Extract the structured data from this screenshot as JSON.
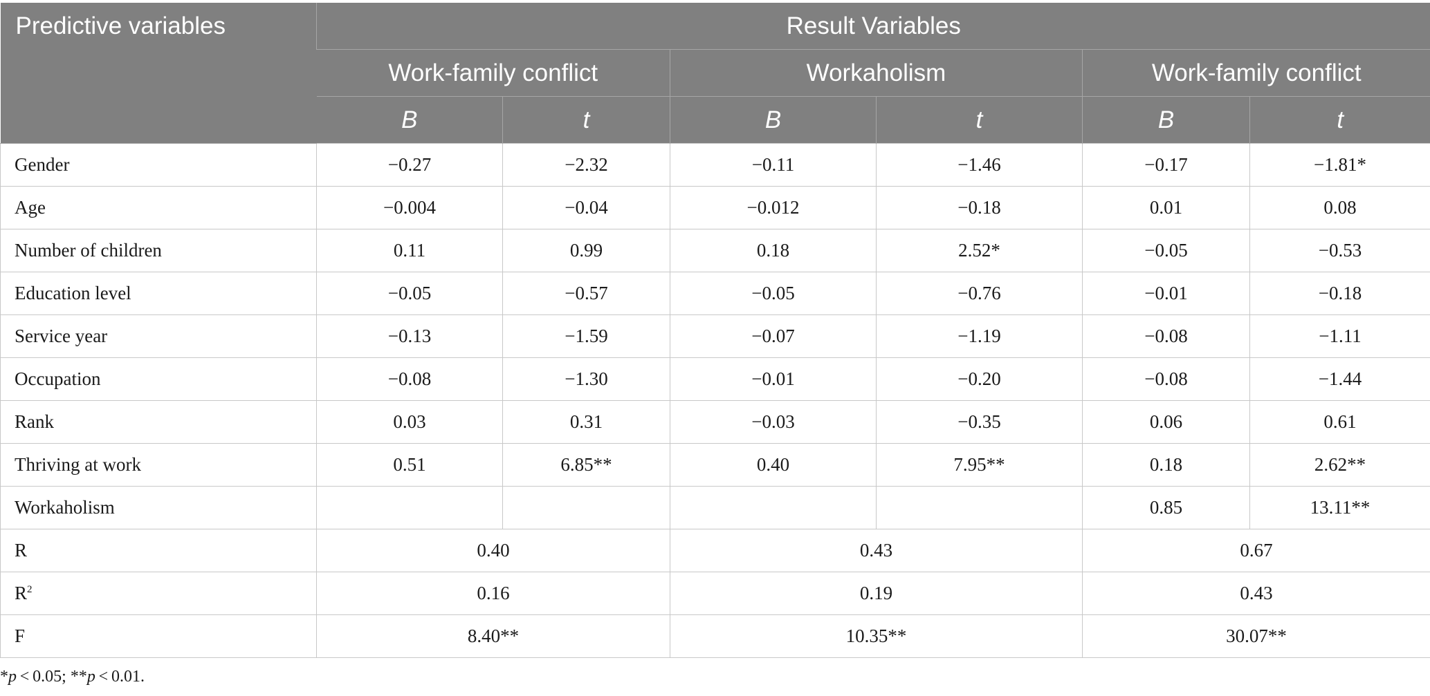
{
  "header": {
    "predictive_variables": "Predictive variables",
    "result_variables": "Result Variables",
    "groups": [
      "Work-family conflict",
      "Workaholism",
      "Work-family conflict"
    ],
    "sub": [
      "B",
      "t",
      "B",
      "t",
      "B",
      "t"
    ]
  },
  "rows": [
    {
      "label": "Gender",
      "cells": [
        "−0.27",
        "−2.32",
        "−0.11",
        "−1.46",
        "−0.17",
        "−1.81*"
      ]
    },
    {
      "label": "Age",
      "cells": [
        "−0.004",
        "−0.04",
        "−0.012",
        "−0.18",
        "0.01",
        "0.08"
      ]
    },
    {
      "label": "Number of children",
      "cells": [
        "0.11",
        "0.99",
        "0.18",
        "2.52*",
        "−0.05",
        "−0.53"
      ]
    },
    {
      "label": "Education level",
      "cells": [
        "−0.05",
        "−0.57",
        "−0.05",
        "−0.76",
        "−0.01",
        "−0.18"
      ]
    },
    {
      "label": "Service year",
      "cells": [
        "−0.13",
        "−1.59",
        "−0.07",
        "−1.19",
        "−0.08",
        "−1.11"
      ]
    },
    {
      "label": "Occupation",
      "cells": [
        "−0.08",
        "−1.30",
        "−0.01",
        "−0.20",
        "−0.08",
        "−1.44"
      ]
    },
    {
      "label": "Rank",
      "cells": [
        "0.03",
        "0.31",
        "−0.03",
        "−0.35",
        "0.06",
        "0.61"
      ]
    },
    {
      "label": "Thriving at work",
      "cells": [
        "0.51",
        "6.85**",
        "0.40",
        "7.95**",
        "0.18",
        "2.62**"
      ]
    },
    {
      "label": "Workaholism",
      "cells": [
        "",
        "",
        "",
        "",
        "0.85",
        "13.11**"
      ]
    }
  ],
  "summary": [
    {
      "label": "R",
      "cells": [
        "0.40",
        "0.43",
        "0.67"
      ]
    },
    {
      "label": "R",
      "sup": "2",
      "cells": [
        "0.16",
        "0.19",
        "0.43"
      ]
    },
    {
      "label": "F",
      "cells": [
        "8.40**",
        "10.35**",
        "30.07**"
      ]
    }
  ],
  "footnote": {
    "star1": "*",
    "p1": "p",
    "t1": " < 0.05; **",
    "p2": "p",
    "t2": " < 0.01."
  }
}
